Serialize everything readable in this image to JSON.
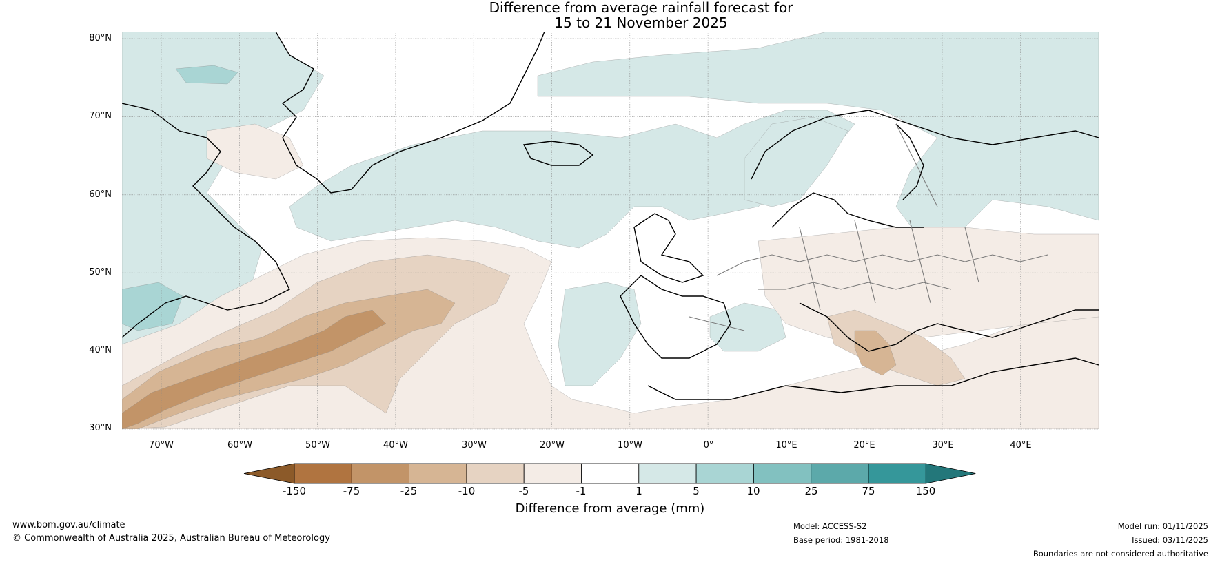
{
  "title": {
    "line1": "Difference from average rainfall forecast for",
    "line2": "15 to 21 November 2025"
  },
  "latitude_labels": [
    "80°N",
    "70°N",
    "60°N",
    "50°N",
    "40°N",
    "30°N"
  ],
  "longitude_labels": [
    "70°W",
    "60°W",
    "50°W",
    "40°W",
    "30°W",
    "20°W",
    "10°W",
    "0°",
    "10°E",
    "20°E",
    "30°E",
    "40°E"
  ],
  "legend": {
    "title": "Difference from average (mm)",
    "ticks": [
      "-150",
      "-75",
      "-25",
      "-10",
      "-5",
      "-1",
      "1",
      "5",
      "10",
      "25",
      "75",
      "150"
    ],
    "colors": [
      "#8c5a29",
      "#b07440",
      "#c29468",
      "#d6b594",
      "#e6d3c2",
      "#f4ece6",
      "#ffffff",
      "#d5e8e7",
      "#a9d5d4",
      "#82c1c0",
      "#5ca9aa",
      "#35979a",
      "#23777a"
    ]
  },
  "map_colors": {
    "dry_light": "#f4ece6",
    "dry_mid": "#e6d3c2",
    "dry_strong": "#d6b594",
    "dry_heavy": "#c29468",
    "wet_light": "#d5e8e7",
    "wet_mid": "#a9d5d4"
  },
  "footer": {
    "url": "www.bom.gov.au/climate",
    "copyright": "© Commonwealth of Australia 2025, Australian Bureau of Meteorology",
    "model": "Model: ACCESS-S2",
    "base_period": "Base period: 1981-2018",
    "model_run": "Model run: 01/11/2025",
    "issued": "Issued: 03/11/2025",
    "disclaimer": "Boundaries are not considered authoritative"
  }
}
